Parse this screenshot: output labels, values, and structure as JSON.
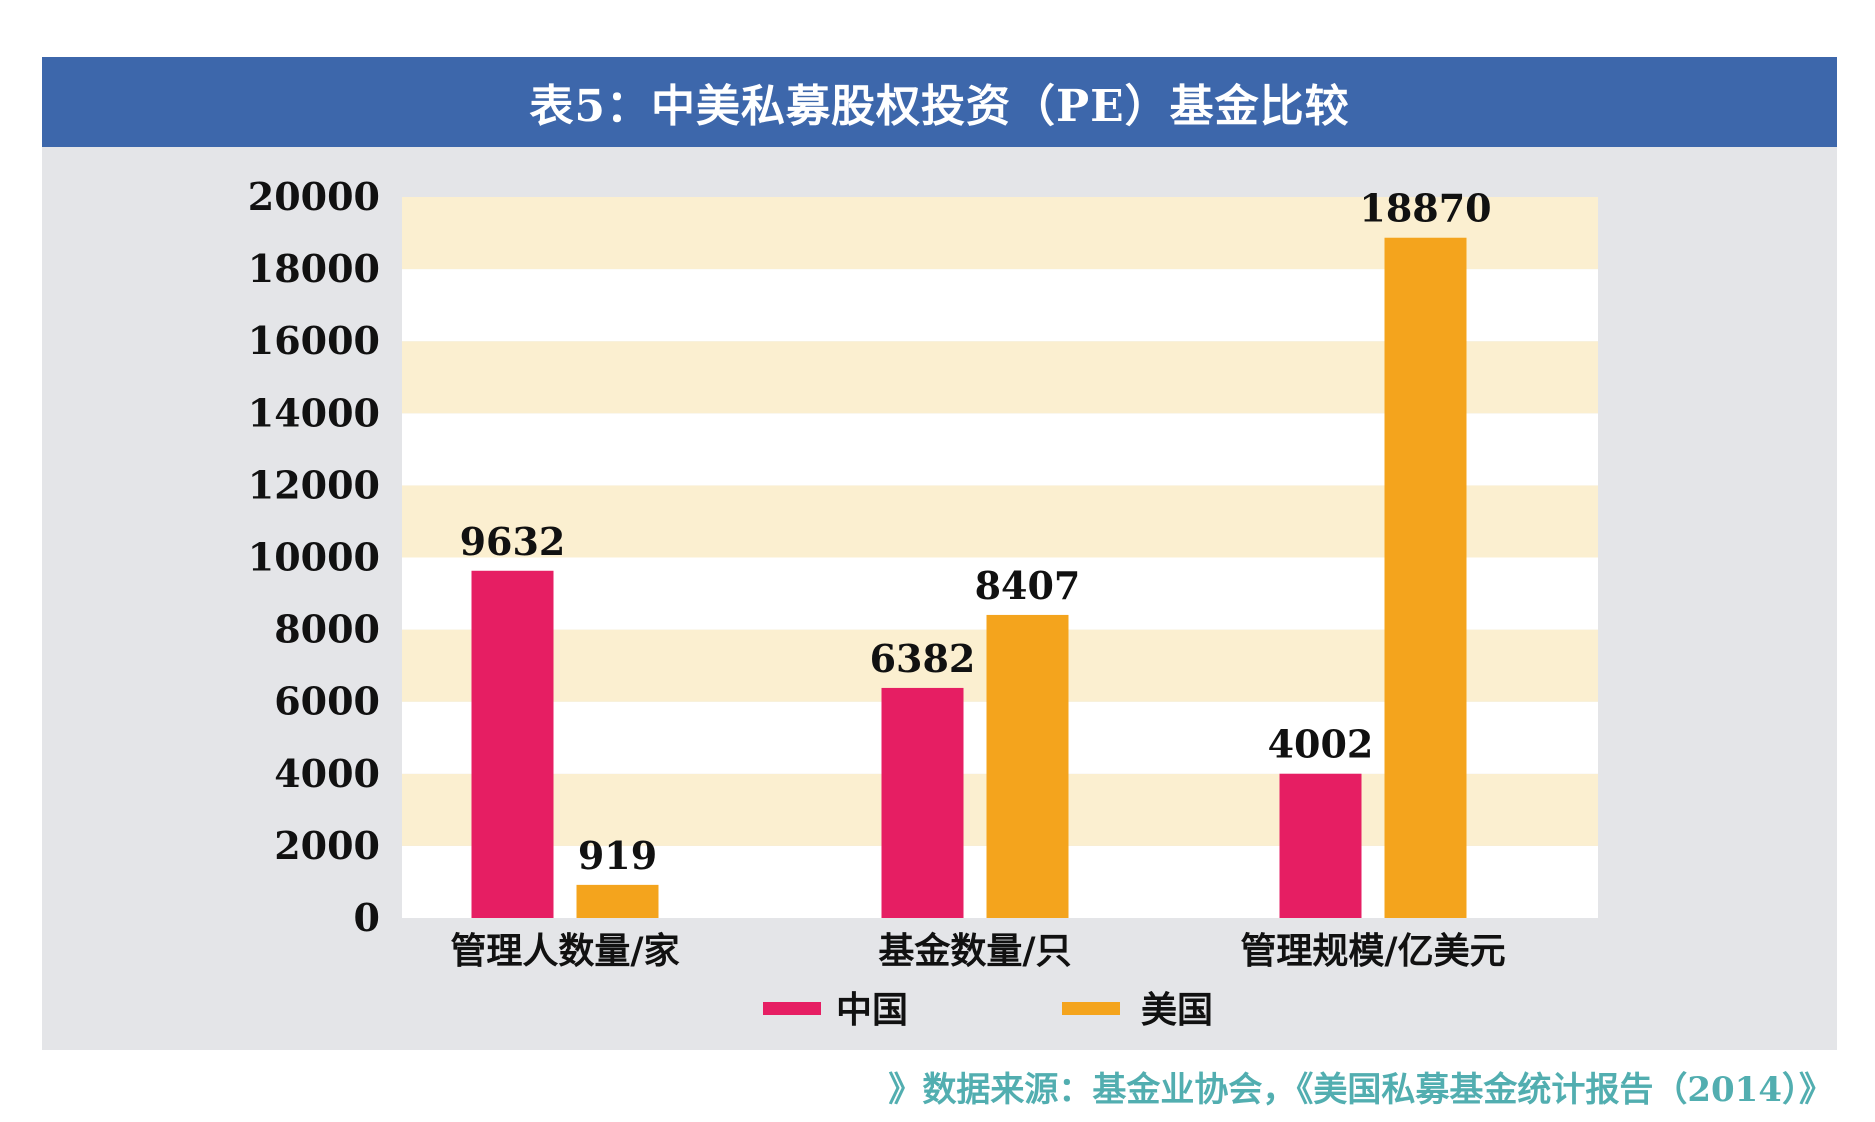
{
  "title": "表5：中美私募股权投资（PE）基金比较",
  "source": "》数据来源：基金业协会，《美国私募基金统计报告（2014）》",
  "colors": {
    "header_bg": "#3d67ab",
    "panel_bg": "#e4e5e8",
    "band_light": "#fbefd0",
    "band_white": "#ffffff",
    "china": "#e61e63",
    "usa": "#f4a41d",
    "source_text": "#52aeb0"
  },
  "chart_data": {
    "type": "bar",
    "categories": [
      "管理人数量/家",
      "基金数量/只",
      "管理规模/亿美元"
    ],
    "series": [
      {
        "name": "中国",
        "values": [
          9632,
          6382,
          4002
        ],
        "labels": [
          "9632",
          "6382",
          "4002"
        ]
      },
      {
        "name": "美国",
        "values": [
          919,
          8407,
          18870
        ],
        "labels": [
          "919",
          "8407",
          "18870"
        ]
      }
    ],
    "ylim": [
      0,
      20000
    ],
    "yticks": [
      0,
      2000,
      4000,
      6000,
      8000,
      10000,
      12000,
      14000,
      16000,
      18000,
      20000
    ],
    "ytick_labels": [
      "0",
      "2000",
      "4000",
      "6000",
      "8000",
      "10000",
      "12000",
      "14000",
      "16000",
      "18000",
      "20000"
    ],
    "grid": "alternating horizontal bands",
    "legend_position": "bottom-center"
  }
}
